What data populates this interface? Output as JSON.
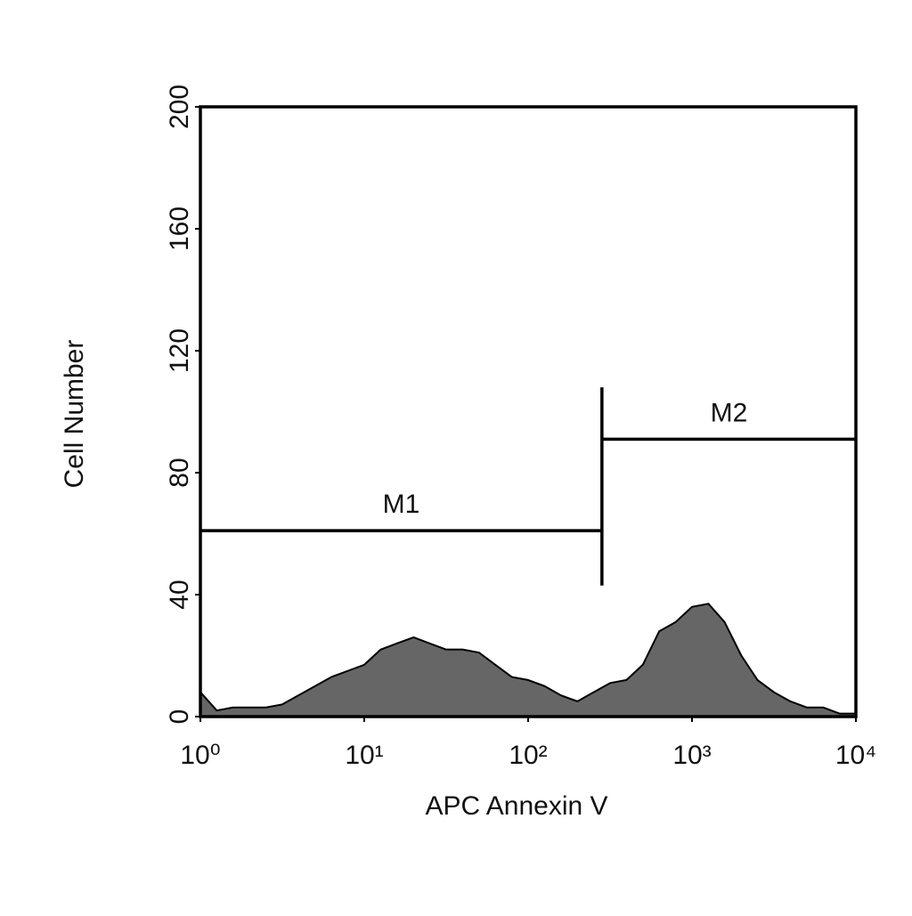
{
  "chart_data": {
    "type": "area",
    "xlabel": "APC Annexin V",
    "ylabel": "Cell Number",
    "x": [
      1,
      1.26,
      1.58,
      2,
      2.51,
      3.16,
      3.98,
      5.01,
      6.31,
      7.94,
      10,
      12.6,
      15.8,
      20,
      25.1,
      31.6,
      39.8,
      50.1,
      63.1,
      79.4,
      100,
      126,
      158,
      200,
      251,
      316,
      398,
      501,
      631,
      794,
      1000,
      1260,
      1580,
      2000,
      2510,
      3160,
      3980,
      5010,
      6310,
      7940,
      10000
    ],
    "values": [
      8,
      2,
      3,
      3,
      3,
      4,
      7,
      10,
      13,
      15,
      17,
      22,
      24,
      26,
      24,
      22,
      22,
      21,
      17,
      13,
      12,
      10,
      7,
      5,
      8,
      11,
      12,
      17,
      28,
      31,
      36,
      37,
      31,
      20,
      12,
      8,
      5,
      3,
      3,
      1,
      1
    ],
    "color": "#666666",
    "xscale": "log",
    "xlim": [
      1,
      10000
    ],
    "xticks": [
      {
        "value": 1,
        "label": "10⁰"
      },
      {
        "value": 10,
        "label": "10¹"
      },
      {
        "value": 100,
        "label": "10²"
      },
      {
        "value": 1000,
        "label": "10³"
      },
      {
        "value": 10000,
        "label": "10⁴"
      }
    ],
    "ylim": [
      0,
      200
    ],
    "yticks": [
      0,
      40,
      80,
      120,
      160,
      200
    ],
    "gates": [
      {
        "label": "M1",
        "range": [
          1,
          282
        ],
        "y": 61
      },
      {
        "label": "M2",
        "range": [
          282,
          10000
        ],
        "y": 91
      }
    ],
    "gate_divider": {
      "x": 282,
      "range": [
        43,
        108
      ]
    }
  }
}
